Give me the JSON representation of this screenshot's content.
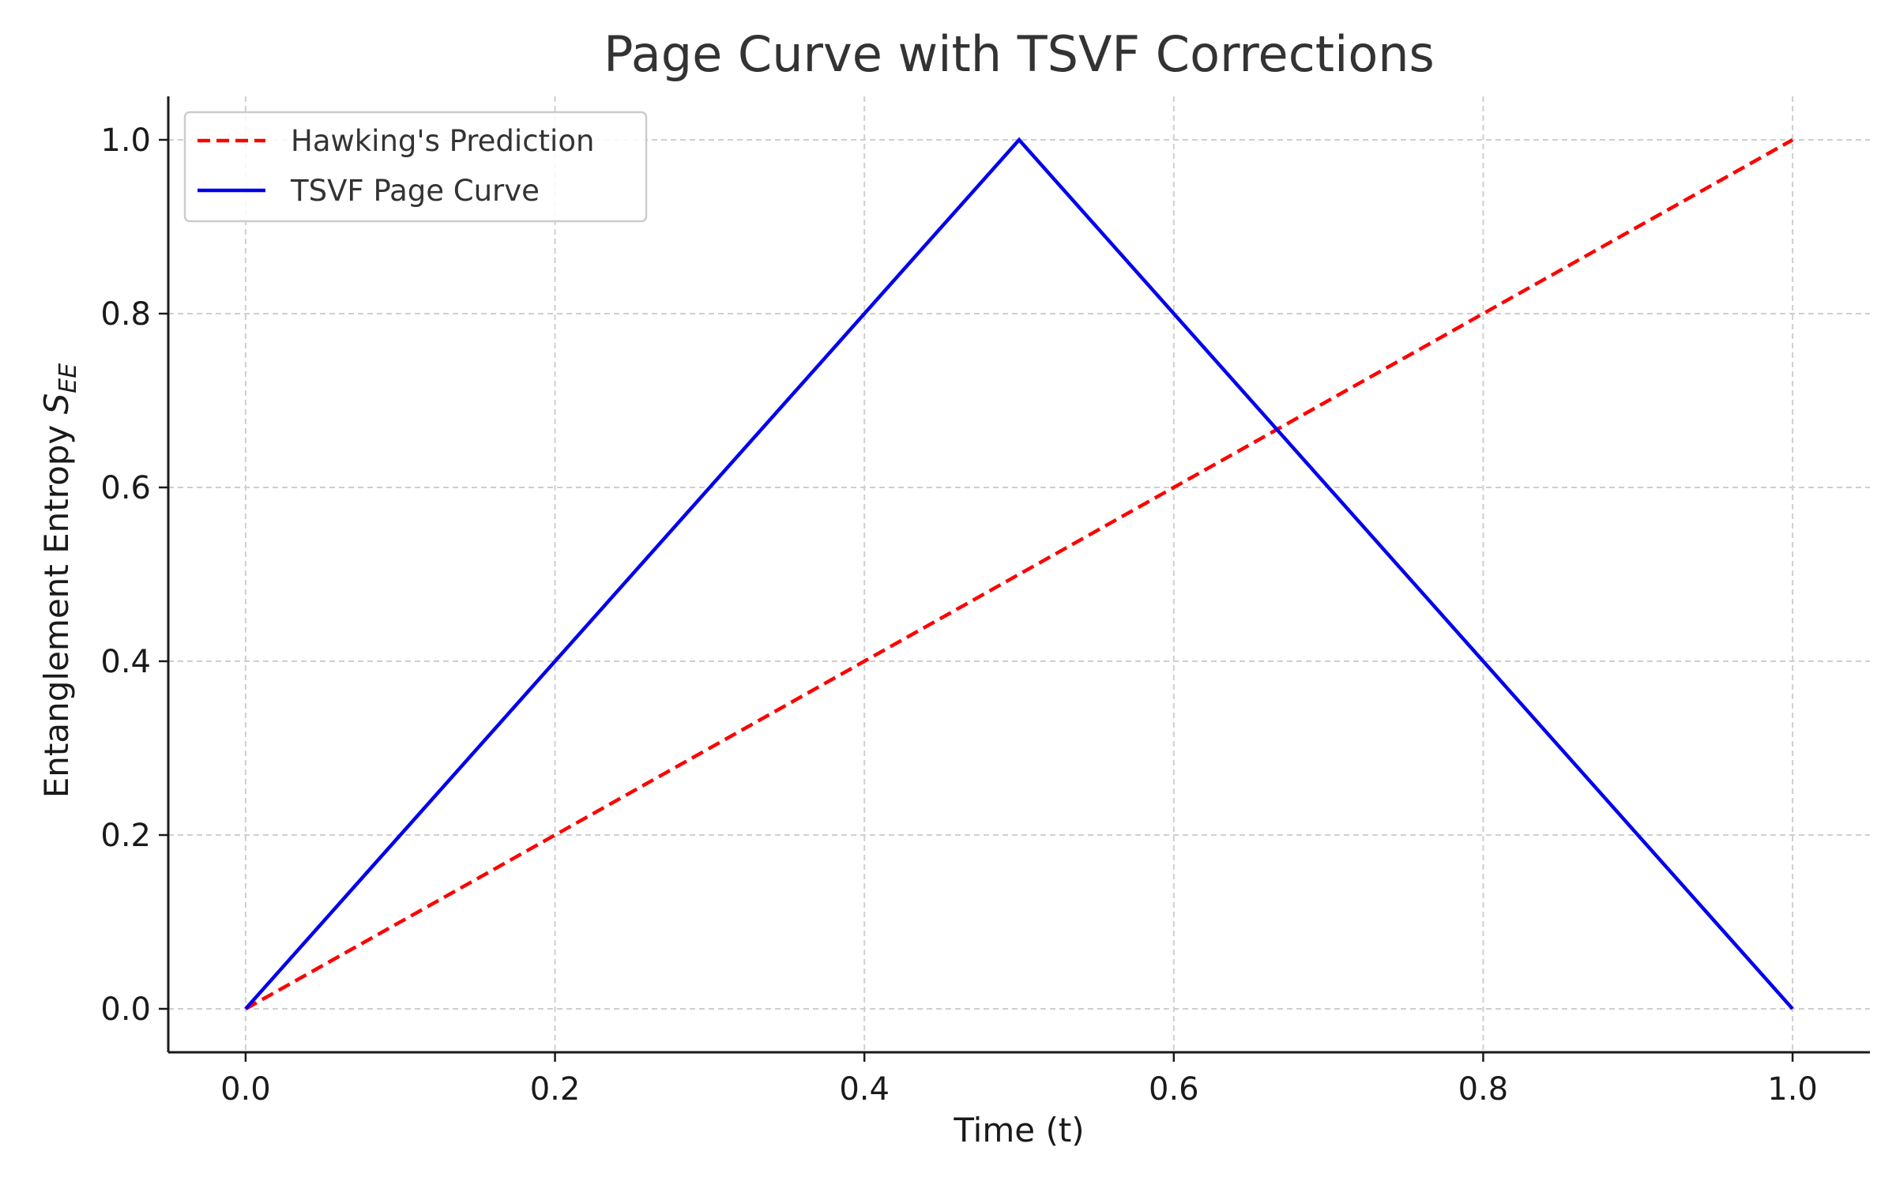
{
  "chart_data": {
    "type": "line",
    "title": "Page Curve with TSVF Corrections",
    "xlabel": "Time (t)",
    "ylabel_prefix": "Entanglement Entropy ",
    "ylabel_symbol": "S",
    "ylabel_subscript": "EE",
    "xlim": [
      -0.05,
      1.05
    ],
    "ylim": [
      -0.05,
      1.05
    ],
    "xticks": [
      0.0,
      0.2,
      0.4,
      0.6,
      0.8,
      1.0
    ],
    "yticks": [
      0.0,
      0.2,
      0.4,
      0.6,
      0.8,
      1.0
    ],
    "xtick_labels": [
      "0.0",
      "0.2",
      "0.4",
      "0.6",
      "0.8",
      "1.0"
    ],
    "ytick_labels": [
      "0.0",
      "0.2",
      "0.4",
      "0.6",
      "0.8",
      "1.0"
    ],
    "grid": true,
    "legend_position": "top-left",
    "series": [
      {
        "name": "Hawking's Prediction",
        "color": "#ff0000",
        "style": "dashed",
        "x": [
          0.0,
          1.0
        ],
        "y": [
          0.0,
          1.0
        ]
      },
      {
        "name": "TSVF Page Curve",
        "color": "#0000ee",
        "style": "solid",
        "x": [
          0.0,
          0.5,
          1.0
        ],
        "y": [
          0.0,
          1.0,
          0.0
        ]
      }
    ]
  }
}
